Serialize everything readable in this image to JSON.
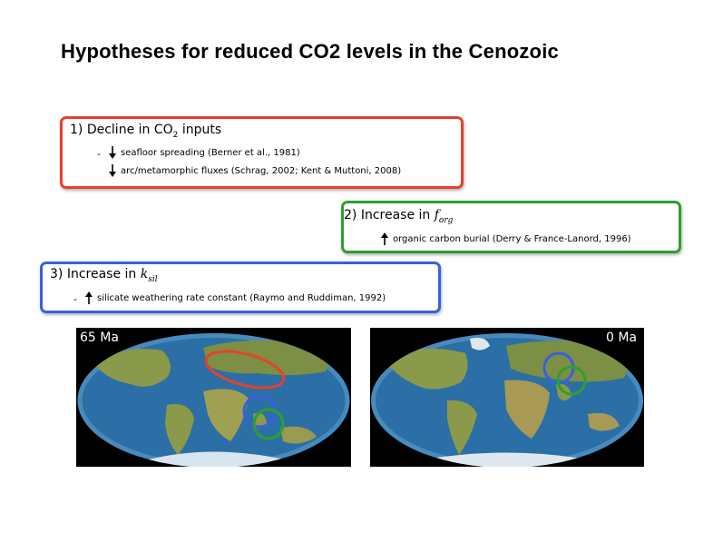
{
  "slide": {
    "title": "Hypotheses for reduced CO2 levels in the Cenozoic"
  },
  "box1": {
    "heading_prefix": "1) Decline in CO",
    "heading_sub": "2",
    "heading_suffix": " inputs",
    "dash": "-",
    "item1": "seafloor spreading (Berner et al., 1981)",
    "item2": "arc/metamorphic fluxes (Schrag, 2002; Kent & Muttoni, 2008)",
    "color": "#e8412b"
  },
  "box2": {
    "heading_prefix": "2)   Increase in ",
    "heading_symbol": "f",
    "heading_sub": "org",
    "item1": "organic carbon burial (Derry & France-Lanord, 1996)",
    "color": "#2ea02c"
  },
  "box3": {
    "heading_prefix": "3)   Increase in ",
    "heading_symbol": "k",
    "heading_sub": "sil",
    "dash": "-",
    "item1": "silicate weathering rate constant (Raymo and Ruddiman, 1992)",
    "color": "#3760e0"
  },
  "maps": {
    "left_label": "65 Ma",
    "right_label": "0 Ma",
    "ocean_color": "#2b6fa6",
    "land_color": "#8a9a4a"
  }
}
